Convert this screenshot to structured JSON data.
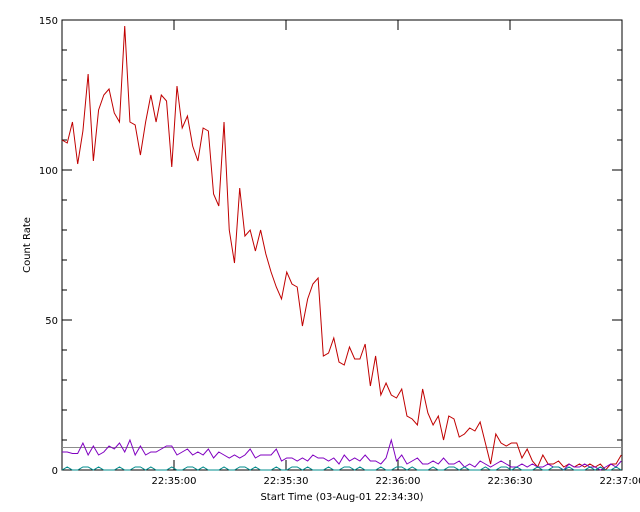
{
  "chart_data": {
    "type": "line",
    "y_label": "Count Rate",
    "x_label": "Start Time (03-Aug-01 22:34:30)",
    "xlim": [
      0,
      150
    ],
    "xticks": [
      {
        "value": 30,
        "label": "22:35:00"
      },
      {
        "value": 60,
        "label": "22:35:30"
      },
      {
        "value": 90,
        "label": "22:36:00"
      },
      {
        "value": 120,
        "label": "22:36:30"
      },
      {
        "value": 150,
        "label": "22:37:00"
      }
    ],
    "ylim": [
      0,
      150
    ],
    "yticks": [
      0,
      50,
      100,
      150
    ],
    "yminorticks": [
      10,
      20,
      30,
      40,
      60,
      70,
      80,
      90,
      110,
      120,
      130,
      140
    ],
    "reference_line": 7.5,
    "reference_color": "#8c8c8c",
    "x": [
      0,
      1.4,
      2.8,
      4.2,
      5.6,
      7,
      8.4,
      9.8,
      11.2,
      12.6,
      14,
      15.4,
      16.8,
      18.2,
      19.6,
      21,
      22.4,
      23.8,
      25.2,
      26.6,
      28,
      29.4,
      30.8,
      32.2,
      33.6,
      35,
      36.4,
      37.8,
      39.2,
      40.6,
      42,
      43.4,
      44.8,
      46.2,
      47.6,
      49,
      50.4,
      51.8,
      53.2,
      54.6,
      56,
      57.4,
      58.8,
      60.2,
      61.6,
      63,
      64.4,
      65.8,
      67.2,
      68.6,
      70,
      71.4,
      72.8,
      74.2,
      75.6,
      77,
      78.4,
      79.8,
      81.2,
      82.6,
      84,
      85.4,
      86.8,
      88.2,
      89.6,
      91,
      92.4,
      93.8,
      95.2,
      96.6,
      98,
      99.4,
      100.8,
      102.2,
      103.6,
      105,
      106.4,
      107.8,
      109.2,
      110.6,
      112,
      113.4,
      114.8,
      116.2,
      117.6,
      119,
      120.4,
      121.8,
      123.2,
      124.6,
      126,
      127.4,
      128.8,
      130.2,
      131.6,
      133,
      134.4,
      135.8,
      137.2,
      138.6,
      140,
      141.4,
      142.8,
      144.2,
      145.6,
      147,
      148.4,
      149.8
    ],
    "series": [
      {
        "color": "#c00000",
        "values": [
          110,
          109,
          116,
          102,
          113,
          132,
          103,
          120,
          125,
          127,
          119,
          116,
          148,
          116,
          115,
          105,
          116,
          125,
          116,
          125,
          123,
          101,
          128,
          114,
          118,
          108,
          103,
          114,
          113,
          92,
          88,
          116,
          80,
          69,
          94,
          78,
          80,
          73,
          80,
          72,
          66,
          61,
          57,
          66,
          62,
          61,
          48,
          57,
          62,
          64,
          38,
          39,
          44,
          36,
          35,
          41,
          37,
          37,
          42,
          28,
          38,
          25,
          29,
          25,
          24,
          27,
          18,
          17,
          15,
          27,
          19,
          15,
          18,
          10,
          18,
          17,
          11,
          12,
          14,
          13,
          16,
          9,
          2,
          12,
          9,
          8,
          9,
          9,
          4,
          7,
          3,
          1,
          5,
          2,
          2,
          3,
          1,
          2,
          1,
          2,
          1,
          2,
          1,
          2,
          0,
          2,
          2,
          5
        ]
      },
      {
        "color": "#8000c0",
        "values": [
          6,
          6,
          5.5,
          5.5,
          9,
          5,
          8,
          5,
          6,
          8,
          7,
          9,
          6,
          10,
          5,
          8,
          5,
          6,
          6,
          7,
          8,
          8,
          5,
          6,
          7,
          5,
          6,
          5,
          7,
          4,
          6,
          5,
          4,
          5,
          4,
          5,
          7,
          4,
          5,
          5,
          5,
          7,
          3,
          4,
          4,
          3,
          4,
          3,
          5,
          4,
          4,
          3,
          4,
          2,
          5,
          3,
          4,
          3,
          5,
          3,
          3,
          2,
          4,
          10,
          3,
          5,
          2,
          3,
          4,
          2,
          2,
          3,
          2,
          4,
          2,
          2,
          3,
          1,
          2,
          1,
          3,
          2,
          1,
          2,
          3,
          2,
          1,
          1,
          2,
          1,
          2,
          1,
          1,
          2,
          1,
          1,
          0,
          2,
          1,
          1,
          2,
          1,
          1,
          0,
          1,
          2,
          1,
          3
        ]
      },
      {
        "color": "#008c8c",
        "values": [
          0,
          1,
          0,
          0,
          1,
          1,
          0,
          1,
          0,
          0,
          0,
          1,
          0,
          0,
          1,
          1,
          0,
          1,
          0,
          0,
          0,
          1,
          0,
          0,
          1,
          1,
          0,
          1,
          0,
          0,
          0,
          1,
          0,
          0,
          1,
          1,
          0,
          1,
          0,
          0,
          0,
          1,
          0,
          0,
          1,
          1,
          0,
          1,
          0,
          0,
          0,
          1,
          0,
          0,
          1,
          1,
          0,
          1,
          0,
          0,
          0,
          1,
          0,
          0,
          1,
          1,
          0,
          1,
          0,
          0,
          0,
          1,
          0,
          0,
          1,
          1,
          0,
          1,
          0,
          0,
          0,
          1,
          0,
          0,
          1,
          1,
          0,
          1,
          0,
          0,
          0,
          1,
          0,
          0,
          1,
          1,
          0,
          1,
          0,
          0,
          0,
          1,
          0,
          1,
          0,
          0,
          1,
          0
        ]
      }
    ]
  }
}
